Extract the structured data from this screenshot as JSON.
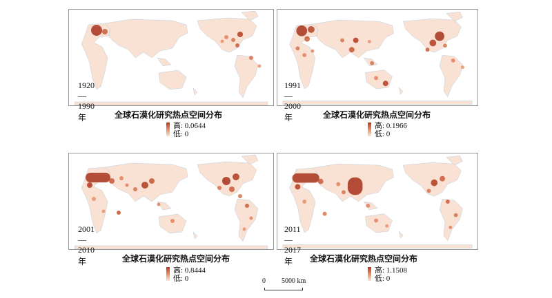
{
  "panels": [
    {
      "period": "1920—1990年",
      "title": "全球石漠化研究热点空间分布",
      "legend_high": "高: 0.0644",
      "legend_low": "低: 0"
    },
    {
      "period": "1991—2000年",
      "title": "全球石漠化研究热点空间分布",
      "legend_high": "高: 0.1966",
      "legend_low": "低: 0"
    },
    {
      "period": "2001—2010年",
      "title": "全球石漠化研究热点空间分布",
      "legend_high": "高: 0.8444",
      "legend_low": "低: 0"
    },
    {
      "period": "2011—2017年",
      "title": "全球石漠化研究热点空间分布",
      "legend_high": "高: 1.1508",
      "legend_low": "低: 0"
    }
  ],
  "scale_bar": {
    "start": "0",
    "end": "5000 km"
  },
  "colors": {
    "land": "#f9e2d4",
    "hot": "#a8331b",
    "warm": "#e07a55",
    "coast": "#a7c4d6"
  }
}
